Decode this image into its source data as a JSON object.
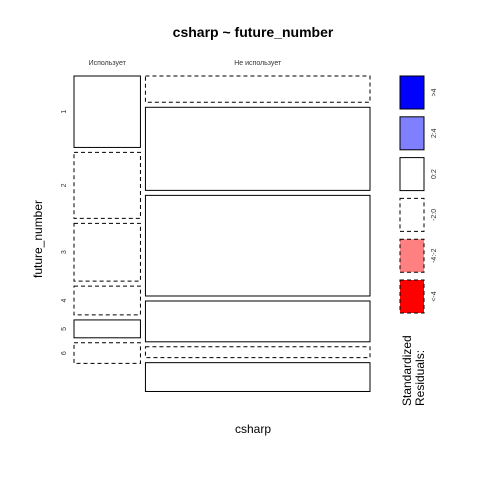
{
  "chart_data": {
    "type": "mosaic",
    "title": "csharp ~ future_number",
    "xlabel": "csharp",
    "ylabel": "future_number",
    "col_categories": [
      "Использует",
      "Не использует"
    ],
    "row_categories": [
      "1",
      "2",
      "3",
      "4",
      "5",
      "6"
    ],
    "col_proportions": [
      0.2283,
      0.7717
    ],
    "row_proportions_by_col": [
      [
        0.2342,
        0.2162,
        0.1892,
        0.0946,
        0.0586,
        0.0676
      ],
      [
        0.0862,
        0.2724,
        0.3299,
        0.1338,
        0.0356,
        0.0945
      ]
    ],
    "cell_residual_class": [
      [
        "0:2",
        "-2:0",
        "-2:0",
        "-2:0",
        "0:2",
        "-2:0"
      ],
      [
        "-2:0",
        "0:2",
        "0:2",
        "0:2",
        "-2:0",
        "0:2"
      ]
    ],
    "legend": {
      "title_line1": "Standardized",
      "title_line2": "Residuals:",
      "items": [
        {
          "label": ">4",
          "color": "#0000ff",
          "dashed": false
        },
        {
          "label": "2:4",
          "color": "#8080ff",
          "dashed": false
        },
        {
          "label": "0:2",
          "color": "#ffffff",
          "dashed": false
        },
        {
          "label": "-2:0",
          "color": "#ffffff",
          "dashed": true
        },
        {
          "label": "-4:-2",
          "color": "#ff8080",
          "dashed": true
        },
        {
          "label": "<-4",
          "color": "#ff0000",
          "dashed": true
        }
      ]
    }
  }
}
